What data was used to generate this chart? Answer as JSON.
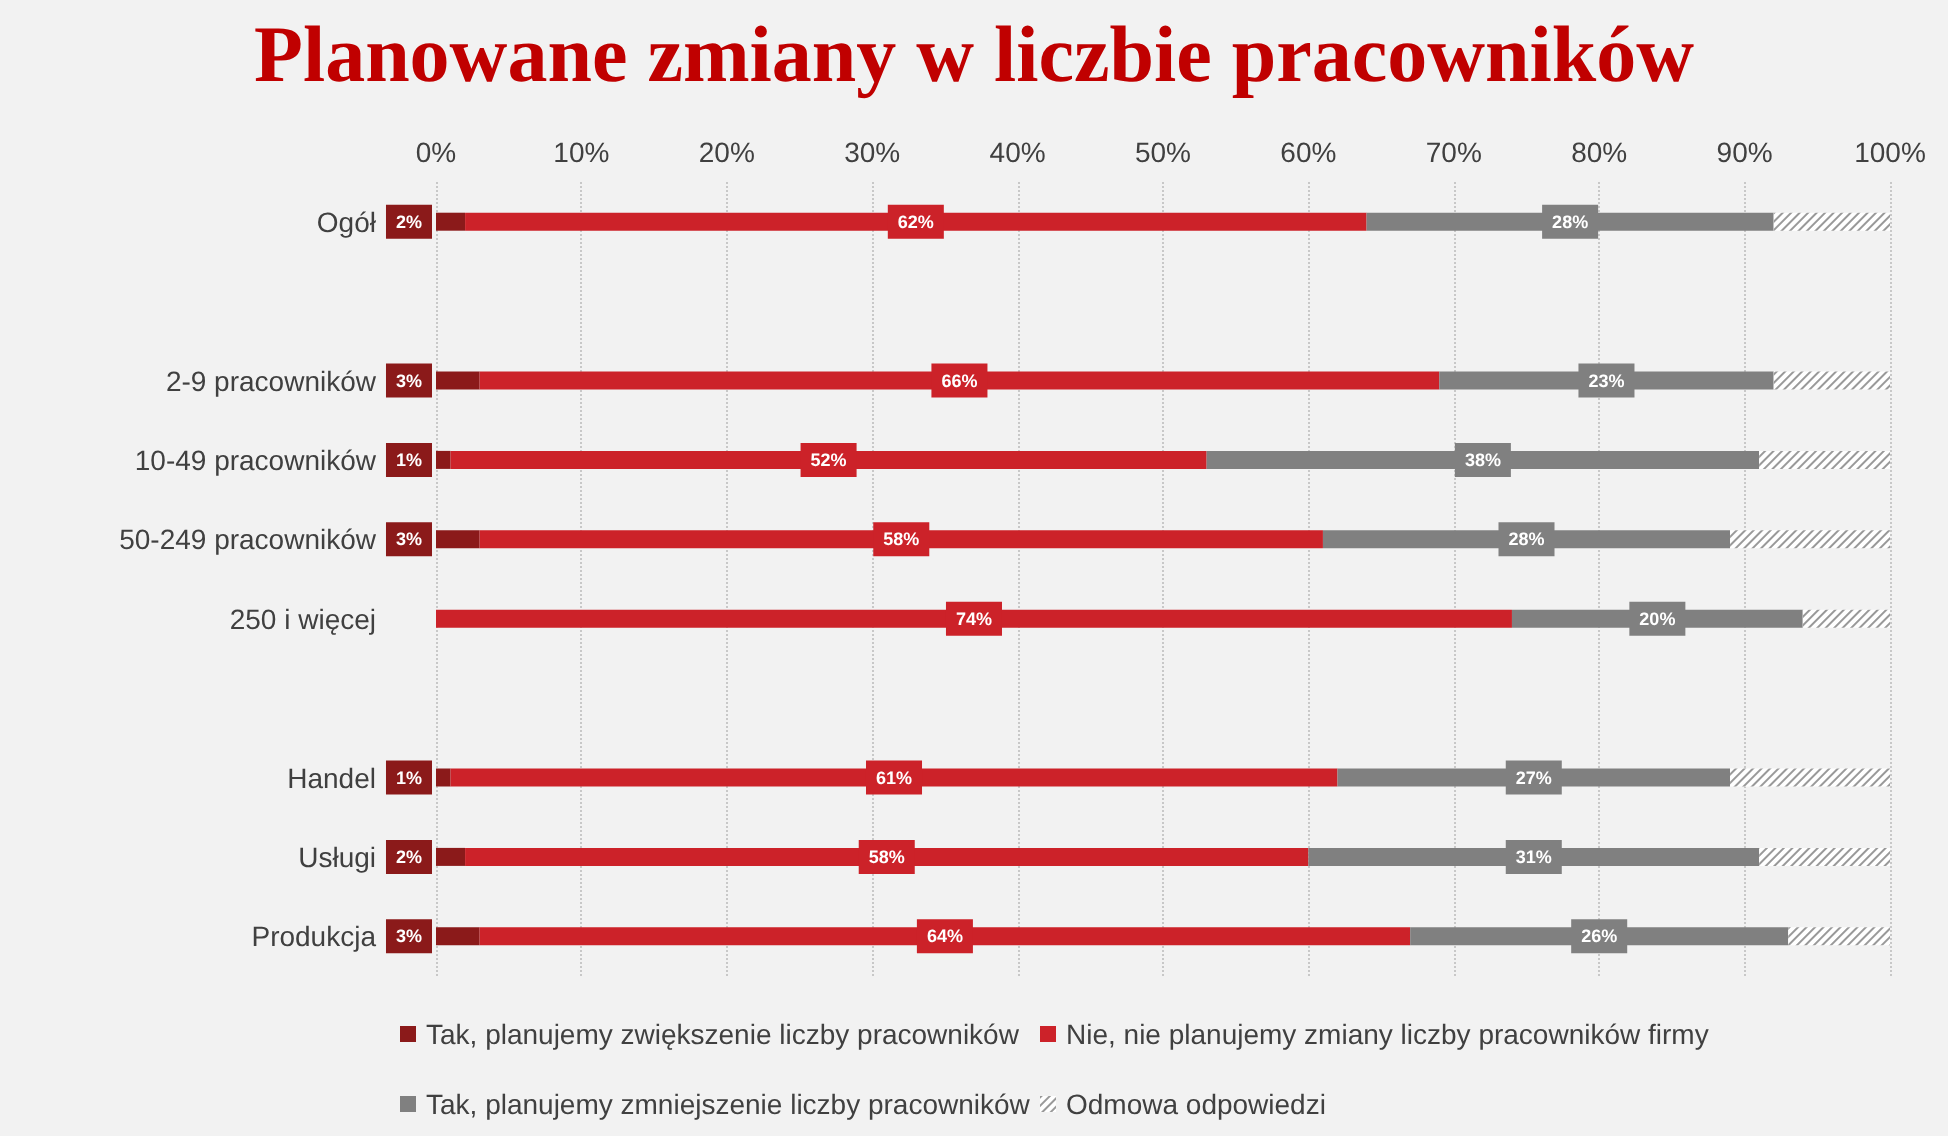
{
  "chart_data": {
    "type": "bar",
    "orientation": "horizontal",
    "stacked": true,
    "title": "Planowane zmiany w liczbie pracowników",
    "categories": [
      "Ogół",
      null,
      "2-9 pracowników",
      "10-49 pracowników",
      "50-249 pracowników",
      "250 i więcej",
      null,
      "Handel",
      "Usługi",
      "Produkcja"
    ],
    "series": [
      {
        "name": "Tak, planujemy zwiększenie liczby pracowników",
        "color": "#8b1a1a",
        "values": [
          2,
          null,
          3,
          1,
          3,
          0,
          null,
          1,
          2,
          3
        ],
        "value_labels": [
          "2%",
          null,
          "3%",
          "1%",
          "3%",
          null,
          null,
          "1%",
          "2%",
          "3%"
        ]
      },
      {
        "name": "Nie, nie planujemy zmiany liczby pracowników firmy",
        "color": "#cc2229",
        "values": [
          62,
          null,
          66,
          52,
          58,
          74,
          null,
          61,
          58,
          64
        ],
        "value_labels": [
          "62%",
          null,
          "66%",
          "52%",
          "58%",
          "74%",
          null,
          "61%",
          "58%",
          "64%"
        ]
      },
      {
        "name": "Tak, planujemy zmniejszenie liczby pracowników",
        "color": "#808080",
        "values": [
          28,
          null,
          23,
          38,
          28,
          20,
          null,
          27,
          31,
          26
        ],
        "value_labels": [
          "28%",
          null,
          "23%",
          "38%",
          "28%",
          "20%",
          null,
          "27%",
          "31%",
          "26%"
        ]
      },
      {
        "name": "Odmowa odpowiedzi",
        "color": "#ffffff",
        "values": [
          8,
          null,
          8,
          9,
          11,
          6,
          null,
          11,
          9,
          7
        ]
      }
    ],
    "xlim": [
      0,
      100
    ],
    "xticks": [
      {
        "value": 0,
        "label": "0%"
      },
      {
        "value": 10,
        "label": "10%"
      },
      {
        "value": 20,
        "label": "20%"
      },
      {
        "value": 30,
        "label": "30%"
      },
      {
        "value": 40,
        "label": "40%"
      },
      {
        "value": 50,
        "label": "50%"
      },
      {
        "value": 60,
        "label": "60%"
      },
      {
        "value": 70,
        "label": "70%"
      },
      {
        "value": 80,
        "label": "80%"
      },
      {
        "value": 90,
        "label": "90%"
      },
      {
        "value": 100,
        "label": "100%"
      }
    ],
    "grid": "x",
    "legend": "bottom"
  }
}
